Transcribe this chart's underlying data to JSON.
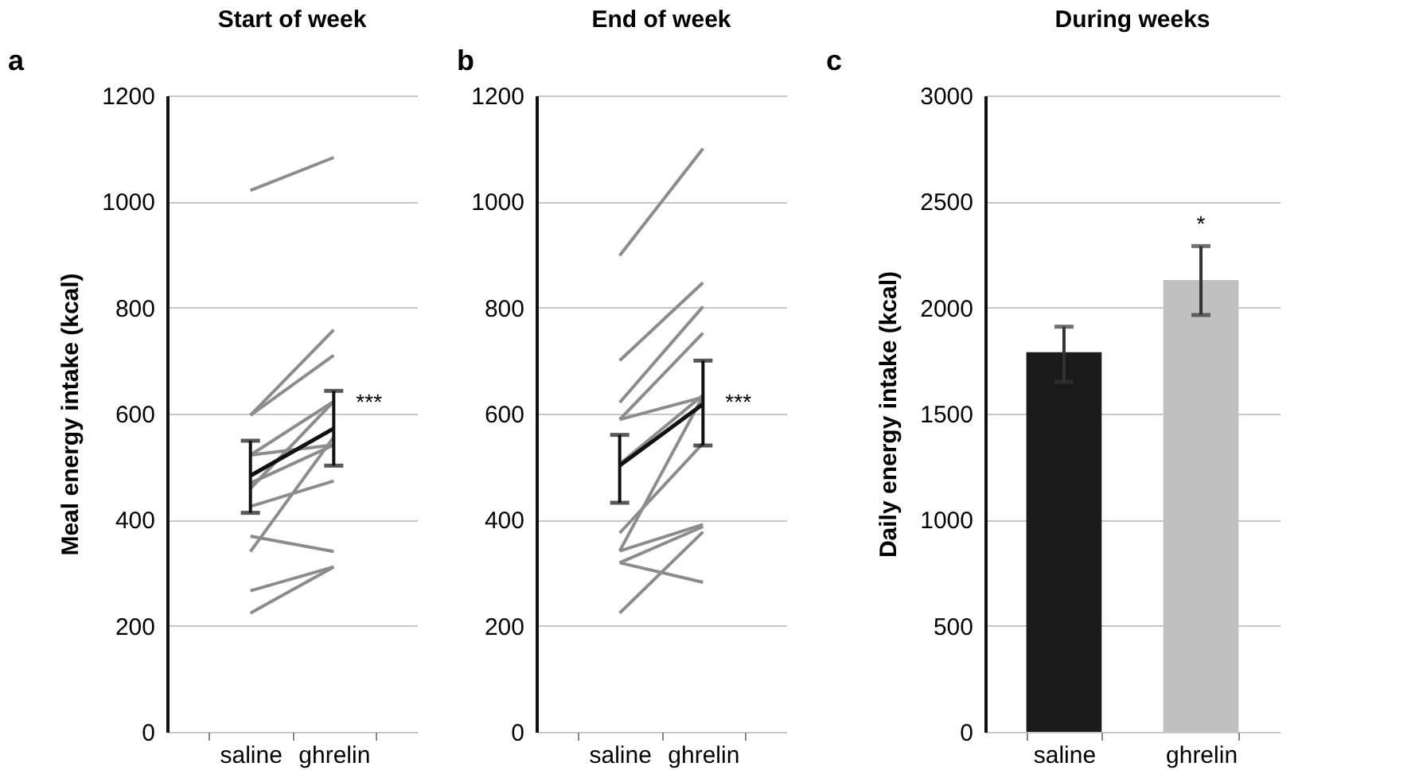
{
  "chart_data": [
    {
      "type": "line",
      "title": "Start of week",
      "ylabel": "Meal energy intake (kcal)",
      "categories": [
        "saline",
        "ghrelin"
      ],
      "ylim": [
        0,
        1200
      ],
      "yticks": [
        0,
        200,
        400,
        600,
        800,
        1000,
        1200
      ],
      "grid": "y",
      "series": [
        {
          "color": "#8c8c8c",
          "values": [
            1021,
            1083
          ]
        },
        {
          "color": "#8c8c8c",
          "values": [
            597,
            758
          ]
        },
        {
          "color": "#8c8c8c",
          "values": [
            597,
            710
          ]
        },
        {
          "color": "#8c8c8c",
          "values": [
            522,
            623
          ]
        },
        {
          "color": "#8c8c8c",
          "values": [
            522,
            541
          ]
        },
        {
          "color": "#8c8c8c",
          "values": [
            459,
            623
          ]
        },
        {
          "color": "#8c8c8c",
          "values": [
            469,
            541
          ]
        },
        {
          "color": "#8c8c8c",
          "values": [
            425,
            473
          ]
        },
        {
          "color": "#8c8c8c",
          "values": [
            369,
            340
          ]
        },
        {
          "color": "#8c8c8c",
          "values": [
            340,
            556
          ]
        },
        {
          "color": "#8c8c8c",
          "values": [
            266,
            311
          ]
        },
        {
          "color": "#8c8c8c",
          "values": [
            224,
            311
          ]
        },
        {
          "color": "#111111",
          "values": [
            483,
            572
          ],
          "errors": [
            [
              413,
              549
            ],
            [
              502,
              643
            ]
          ]
        }
      ],
      "annotations": [
        "a",
        {
          "text": "***",
          "x": "ghrelin",
          "y": 620
        }
      ]
    },
    {
      "type": "line",
      "title": "End of week",
      "categories": [
        "saline",
        "ghrelin"
      ],
      "ylim": [
        0,
        1200
      ],
      "yticks": [
        0,
        200,
        400,
        600,
        800,
        1000,
        1200
      ],
      "grid": "y",
      "series": [
        {
          "color": "#8c8c8c",
          "values": [
            898,
            1100
          ]
        },
        {
          "color": "#8c8c8c",
          "values": [
            700,
            847
          ]
        },
        {
          "color": "#8c8c8c",
          "values": [
            621,
            802
          ]
        },
        {
          "color": "#8c8c8c",
          "values": [
            589,
            752
          ]
        },
        {
          "color": "#8c8c8c",
          "values": [
            589,
            631
          ]
        },
        {
          "color": "#8c8c8c",
          "values": [
            505,
            635
          ]
        },
        {
          "color": "#8c8c8c",
          "values": [
            375,
            544
          ]
        },
        {
          "color": "#8c8c8c",
          "values": [
            341,
            391
          ]
        },
        {
          "color": "#8c8c8c",
          "values": [
            341,
            633
          ]
        },
        {
          "color": "#8c8c8c",
          "values": [
            319,
            387
          ]
        },
        {
          "color": "#8c8c8c",
          "values": [
            319,
            282
          ]
        },
        {
          "color": "#8c8c8c",
          "values": [
            224,
            377
          ]
        },
        {
          "color": "#111111",
          "values": [
            502,
            618
          ],
          "errors": [
            [
              432,
              560
            ],
            [
              540,
              700
            ]
          ]
        }
      ],
      "annotations": [
        "b",
        {
          "text": "***",
          "x": "ghrelin",
          "y": 620
        }
      ]
    },
    {
      "type": "bar",
      "title": "During weeks",
      "ylabel": "Daily energy intake (kcal)",
      "categories": [
        "saline",
        "ghrelin"
      ],
      "ylim": [
        0,
        3000
      ],
      "yticks": [
        0,
        500,
        1000,
        1500,
        2000,
        2500,
        3000
      ],
      "grid": "y",
      "values": [
        1790,
        2130
      ],
      "colors": [
        "#1a1a1a",
        "#c0c0c0"
      ],
      "errors": [
        [
          1650,
          1910
        ],
        [
          1965,
          2290
        ]
      ],
      "annotations": [
        "c",
        {
          "text": "*",
          "x": "ghrelin",
          "y": 2290
        }
      ]
    }
  ]
}
